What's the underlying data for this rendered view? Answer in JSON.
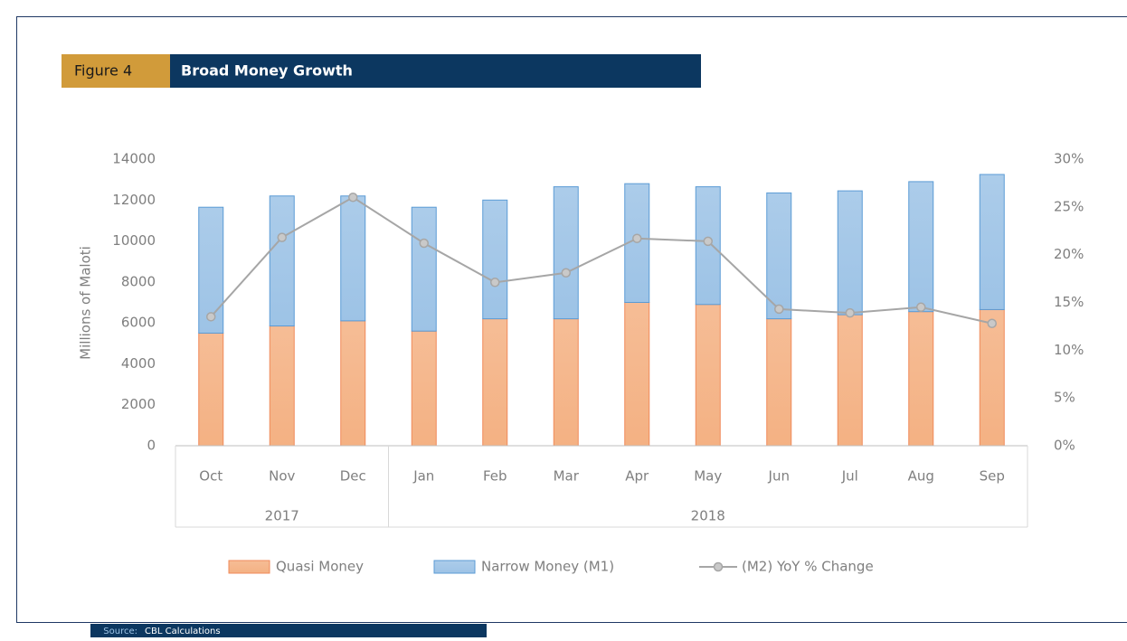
{
  "figure_label": "Figure 4",
  "source_label": "Source:",
  "source_text": "CBL Calculations",
  "chart_data": {
    "type": "bar",
    "stacked": true,
    "title": "Broad Money Growth",
    "y_label": "Millions of Maloti",
    "categories": [
      "Oct",
      "Nov",
      "Dec",
      "Jan",
      "Feb",
      "Mar",
      "Apr",
      "May",
      "Jun",
      "Jul",
      "Aug",
      "Sep"
    ],
    "category_groups": [
      "2017",
      "2017",
      "2017",
      "2018",
      "2018",
      "2018",
      "2018",
      "2018",
      "2018",
      "2018",
      "2018",
      "2018"
    ],
    "series": [
      {
        "name": "Quasi Money",
        "type": "bar",
        "color": "#f4b183",
        "values": [
          5500,
          5850,
          6100,
          5600,
          6200,
          6200,
          7000,
          6900,
          6200,
          6400,
          6550,
          6650
        ]
      },
      {
        "name": "Narrow Money (M1)",
        "type": "bar",
        "color": "#9dc3e6",
        "values": [
          6150,
          6350,
          6100,
          6050,
          5800,
          6450,
          5800,
          5750,
          6150,
          6050,
          6350,
          6600
        ]
      },
      {
        "name": "(M2) YoY % Change",
        "type": "line",
        "axis": "y2",
        "color": "#a6a6a6",
        "values": [
          13.5,
          21.8,
          26,
          21.2,
          17.1,
          18.1,
          21.7,
          21.4,
          14.3,
          13.9,
          14.5,
          12.8
        ]
      }
    ],
    "ylim": [
      0,
      14000
    ],
    "yticks": [
      0,
      2000,
      4000,
      6000,
      8000,
      10000,
      12000,
      14000
    ],
    "y2lim": [
      0,
      30
    ],
    "y2ticks": [
      {
        "value": 0,
        "label": "0%"
      },
      {
        "value": 5,
        "label": "5%"
      },
      {
        "value": 10,
        "label": "10%"
      },
      {
        "value": 15,
        "label": "15%"
      },
      {
        "value": 20,
        "label": "20%"
      },
      {
        "value": 25,
        "label": "25%"
      },
      {
        "value": 30,
        "label": "30%"
      }
    ],
    "legend": "bottom",
    "grid": false
  }
}
